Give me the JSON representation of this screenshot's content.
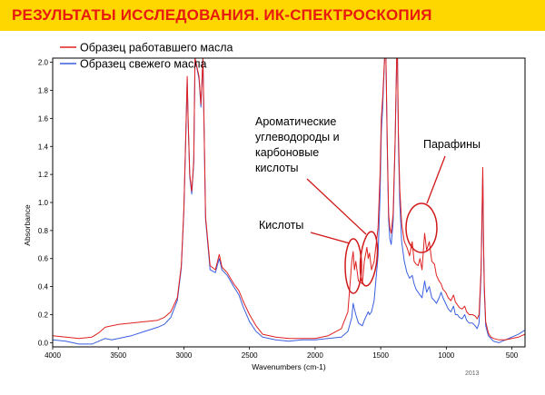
{
  "header": {
    "title": "РЕЗУЛЬТАТЫ ИССЛЕДОВАНИЯ. ИК-СПЕКТРОСКОПИЯ"
  },
  "colors": {
    "header_bg": "#ffd700",
    "header_text": "#e8190f",
    "used_oil": "#e02020",
    "fresh_oil": "#3a5fe0",
    "annotation": "#d01818"
  },
  "footer": {
    "year": "2013"
  },
  "chart_data": {
    "type": "line",
    "xlabel": "Wavenumbers (cm-1)",
    "ylabel": "Absorbance",
    "xlim": [
      4000,
      400
    ],
    "x_reversed": true,
    "ylim": [
      -0.03,
      2.03
    ],
    "x_ticks": [
      4000,
      3500,
      3000,
      2500,
      2000,
      1500,
      1000,
      500
    ],
    "y_ticks": [
      0.0,
      0.2,
      0.4,
      0.6,
      0.8,
      1.0,
      1.2,
      1.4,
      1.6,
      1.8,
      2.0
    ],
    "y_tick_labels": [
      "0.0",
      "0.2",
      "0.4",
      "0.6",
      "0.8",
      "1.0",
      "1.2",
      "1.4",
      "1.6",
      "1.8",
      "2.0"
    ],
    "legend_position": "top-left",
    "series": [
      {
        "name": "Образец работавшего масла",
        "color": "#e02020",
        "points": [
          [
            4000,
            0.05
          ],
          [
            3900,
            0.04
          ],
          [
            3800,
            0.03
          ],
          [
            3700,
            0.04
          ],
          [
            3650,
            0.07
          ],
          [
            3600,
            0.11
          ],
          [
            3550,
            0.12
          ],
          [
            3500,
            0.13
          ],
          [
            3400,
            0.14
          ],
          [
            3300,
            0.15
          ],
          [
            3200,
            0.16
          ],
          [
            3150,
            0.18
          ],
          [
            3100,
            0.22
          ],
          [
            3050,
            0.32
          ],
          [
            3020,
            0.55
          ],
          [
            3000,
            0.95
          ],
          [
            2985,
            1.5
          ],
          [
            2975,
            1.9
          ],
          [
            2968,
            1.6
          ],
          [
            2955,
            1.2
          ],
          [
            2940,
            1.08
          ],
          [
            2925,
            1.3
          ],
          [
            2915,
            2.03
          ],
          [
            2885,
            1.9
          ],
          [
            2870,
            1.7
          ],
          [
            2855,
            2.03
          ],
          [
            2845,
            1.5
          ],
          [
            2835,
            0.9
          ],
          [
            2800,
            0.55
          ],
          [
            2760,
            0.52
          ],
          [
            2730,
            0.63
          ],
          [
            2710,
            0.54
          ],
          [
            2670,
            0.5
          ],
          [
            2620,
            0.42
          ],
          [
            2580,
            0.37
          ],
          [
            2550,
            0.3
          ],
          [
            2500,
            0.2
          ],
          [
            2450,
            0.12
          ],
          [
            2400,
            0.06
          ],
          [
            2300,
            0.04
          ],
          [
            2200,
            0.03
          ],
          [
            2100,
            0.03
          ],
          [
            2000,
            0.03
          ],
          [
            1900,
            0.05
          ],
          [
            1800,
            0.1
          ],
          [
            1750,
            0.22
          ],
          [
            1720,
            0.58
          ],
          [
            1710,
            0.65
          ],
          [
            1700,
            0.52
          ],
          [
            1690,
            0.58
          ],
          [
            1670,
            0.44
          ],
          [
            1640,
            0.42
          ],
          [
            1625,
            0.58
          ],
          [
            1605,
            0.68
          ],
          [
            1595,
            0.6
          ],
          [
            1585,
            0.64
          ],
          [
            1570,
            0.52
          ],
          [
            1550,
            0.58
          ],
          [
            1520,
            0.82
          ],
          [
            1505,
            1.2
          ],
          [
            1495,
            1.6
          ],
          [
            1485,
            1.75
          ],
          [
            1470,
            2.03
          ],
          [
            1460,
            2.03
          ],
          [
            1450,
            1.45
          ],
          [
            1440,
            0.92
          ],
          [
            1430,
            0.82
          ],
          [
            1420,
            0.78
          ],
          [
            1405,
            0.92
          ],
          [
            1390,
            1.45
          ],
          [
            1378,
            2.03
          ],
          [
            1372,
            2.03
          ],
          [
            1365,
            1.5
          ],
          [
            1355,
            1.1
          ],
          [
            1340,
            0.85
          ],
          [
            1320,
            0.72
          ],
          [
            1300,
            0.68
          ],
          [
            1280,
            0.62
          ],
          [
            1260,
            0.72
          ],
          [
            1245,
            0.58
          ],
          [
            1230,
            0.56
          ],
          [
            1215,
            0.55
          ],
          [
            1200,
            0.6
          ],
          [
            1185,
            0.52
          ],
          [
            1165,
            0.78
          ],
          [
            1150,
            0.66
          ],
          [
            1130,
            0.72
          ],
          [
            1110,
            0.58
          ],
          [
            1090,
            0.56
          ],
          [
            1075,
            0.48
          ],
          [
            1055,
            0.44
          ],
          [
            1040,
            0.42
          ],
          [
            1025,
            0.38
          ],
          [
            1005,
            0.36
          ],
          [
            985,
            0.32
          ],
          [
            965,
            0.3
          ],
          [
            945,
            0.34
          ],
          [
            930,
            0.29
          ],
          [
            915,
            0.27
          ],
          [
            900,
            0.25
          ],
          [
            880,
            0.24
          ],
          [
            860,
            0.26
          ],
          [
            845,
            0.22
          ],
          [
            825,
            0.2
          ],
          [
            800,
            0.2
          ],
          [
            780,
            0.19
          ],
          [
            765,
            0.17
          ],
          [
            750,
            0.2
          ],
          [
            735,
            0.52
          ],
          [
            728,
            0.9
          ],
          [
            722,
            1.25
          ],
          [
            716,
            0.7
          ],
          [
            710,
            0.4
          ],
          [
            700,
            0.15
          ],
          [
            680,
            0.07
          ],
          [
            660,
            0.04
          ],
          [
            640,
            0.03
          ],
          [
            600,
            0.02
          ],
          [
            550,
            0.02
          ],
          [
            500,
            0.03
          ],
          [
            450,
            0.04
          ],
          [
            400,
            0.06
          ]
        ]
      },
      {
        "name": "Образец свежего масла",
        "color": "#3a5fe0",
        "points": [
          [
            4000,
            0.02
          ],
          [
            3900,
            0.01
          ],
          [
            3800,
            -0.01
          ],
          [
            3700,
            -0.01
          ],
          [
            3650,
            0.01
          ],
          [
            3600,
            0.03
          ],
          [
            3550,
            0.02
          ],
          [
            3500,
            0.03
          ],
          [
            3400,
            0.05
          ],
          [
            3300,
            0.08
          ],
          [
            3200,
            0.11
          ],
          [
            3150,
            0.13
          ],
          [
            3100,
            0.18
          ],
          [
            3050,
            0.3
          ],
          [
            3020,
            0.53
          ],
          [
            3000,
            0.93
          ],
          [
            2985,
            1.48
          ],
          [
            2975,
            1.88
          ],
          [
            2968,
            1.58
          ],
          [
            2955,
            1.18
          ],
          [
            2940,
            1.06
          ],
          [
            2925,
            1.28
          ],
          [
            2915,
            2.03
          ],
          [
            2885,
            1.88
          ],
          [
            2870,
            1.68
          ],
          [
            2855,
            2.03
          ],
          [
            2845,
            1.48
          ],
          [
            2835,
            0.88
          ],
          [
            2800,
            0.52
          ],
          [
            2760,
            0.5
          ],
          [
            2730,
            0.6
          ],
          [
            2710,
            0.52
          ],
          [
            2670,
            0.48
          ],
          [
            2620,
            0.4
          ],
          [
            2580,
            0.34
          ],
          [
            2550,
            0.26
          ],
          [
            2500,
            0.15
          ],
          [
            2450,
            0.08
          ],
          [
            2400,
            0.04
          ],
          [
            2300,
            0.02
          ],
          [
            2200,
            0.01
          ],
          [
            2100,
            0.02
          ],
          [
            2000,
            0.02
          ],
          [
            1900,
            0.03
          ],
          [
            1800,
            0.04
          ],
          [
            1750,
            0.08
          ],
          [
            1720,
            0.18
          ],
          [
            1710,
            0.28
          ],
          [
            1700,
            0.24
          ],
          [
            1690,
            0.2
          ],
          [
            1670,
            0.14
          ],
          [
            1640,
            0.12
          ],
          [
            1625,
            0.16
          ],
          [
            1605,
            0.2
          ],
          [
            1595,
            0.22
          ],
          [
            1585,
            0.2
          ],
          [
            1570,
            0.22
          ],
          [
            1550,
            0.3
          ],
          [
            1520,
            0.62
          ],
          [
            1505,
            1.05
          ],
          [
            1495,
            1.5
          ],
          [
            1485,
            1.68
          ],
          [
            1470,
            2.03
          ],
          [
            1460,
            2.03
          ],
          [
            1450,
            1.4
          ],
          [
            1440,
            0.88
          ],
          [
            1430,
            0.74
          ],
          [
            1420,
            0.7
          ],
          [
            1405,
            0.86
          ],
          [
            1390,
            1.42
          ],
          [
            1378,
            2.03
          ],
          [
            1372,
            2.03
          ],
          [
            1365,
            1.42
          ],
          [
            1355,
            1.0
          ],
          [
            1340,
            0.72
          ],
          [
            1320,
            0.58
          ],
          [
            1300,
            0.5
          ],
          [
            1280,
            0.46
          ],
          [
            1260,
            0.48
          ],
          [
            1245,
            0.42
          ],
          [
            1230,
            0.38
          ],
          [
            1215,
            0.36
          ],
          [
            1200,
            0.34
          ],
          [
            1185,
            0.32
          ],
          [
            1165,
            0.44
          ],
          [
            1150,
            0.36
          ],
          [
            1130,
            0.4
          ],
          [
            1110,
            0.32
          ],
          [
            1090,
            0.3
          ],
          [
            1075,
            0.28
          ],
          [
            1055,
            0.32
          ],
          [
            1040,
            0.36
          ],
          [
            1025,
            0.32
          ],
          [
            1005,
            0.28
          ],
          [
            985,
            0.24
          ],
          [
            965,
            0.22
          ],
          [
            945,
            0.26
          ],
          [
            930,
            0.2
          ],
          [
            915,
            0.2
          ],
          [
            900,
            0.18
          ],
          [
            880,
            0.17
          ],
          [
            860,
            0.2
          ],
          [
            845,
            0.16
          ],
          [
            825,
            0.14
          ],
          [
            800,
            0.14
          ],
          [
            780,
            0.12
          ],
          [
            765,
            0.1
          ],
          [
            750,
            0.14
          ],
          [
            735,
            0.48
          ],
          [
            728,
            0.86
          ],
          [
            722,
            1.2
          ],
          [
            716,
            0.66
          ],
          [
            710,
            0.36
          ],
          [
            700,
            0.12
          ],
          [
            680,
            0.05
          ],
          [
            660,
            0.03
          ],
          [
            640,
            0.01
          ],
          [
            600,
            0.0
          ],
          [
            550,
            0.02
          ],
          [
            500,
            0.04
          ],
          [
            450,
            0.06
          ],
          [
            400,
            0.09
          ]
        ]
      }
    ],
    "annotations": [
      {
        "id": "aromatic",
        "lines": [
          "Ароматические",
          "углеводороды и",
          "карбоновые",
          "кислоты"
        ]
      },
      {
        "id": "paraffins",
        "lines": [
          "Парафины"
        ]
      },
      {
        "id": "acids",
        "lines": [
          "Кислоты"
        ]
      }
    ]
  }
}
